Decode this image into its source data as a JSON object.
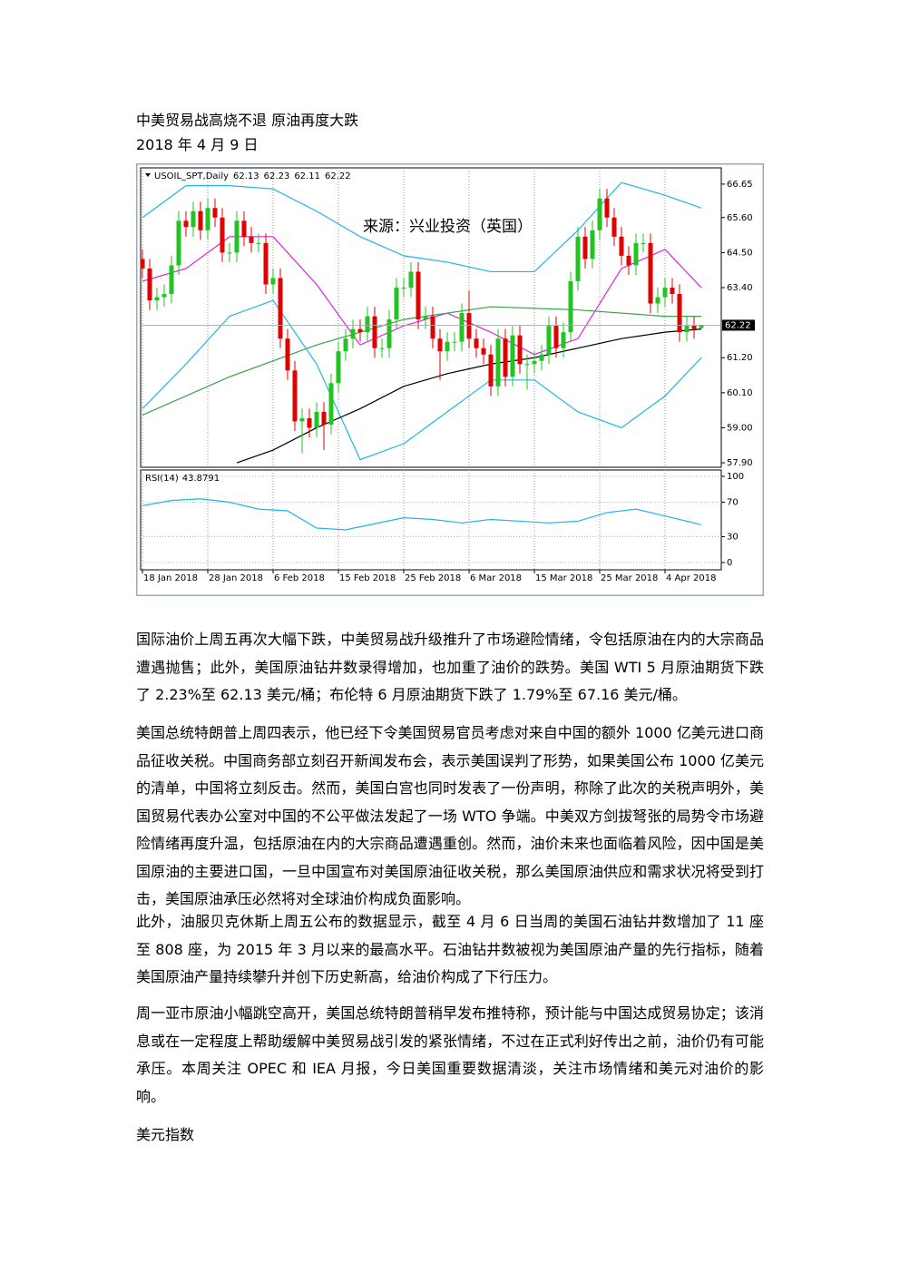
{
  "title": "中美贸易战高烧不退 原油再度大跌",
  "date": "2018 年 4 月 9 日",
  "chart": {
    "type": "candlestick",
    "symbol": "USOIL_SPT,Daily",
    "watermark": "来源：兴业投资（英国）",
    "up_color": "#22c322",
    "down_color": "#e00000",
    "open": [
      64.3,
      64.0,
      63.0,
      63.1,
      63.2,
      64.1,
      65.5,
      65.3,
      65.8,
      65.2,
      65.9,
      65.6,
      64.5,
      64.5,
      65.5,
      65.0,
      64.8,
      64.8,
      63.5,
      63.7,
      61.8,
      60.8,
      59.2,
      59.3,
      59.0,
      59.5,
      59.1,
      60.4,
      61.4,
      61.8,
      62.1,
      62.0,
      62.5,
      61.5,
      61.5,
      62.4,
      63.4,
      63.4,
      63.9,
      62.4,
      62.5,
      61.8,
      61.4,
      61.7,
      61.7,
      62.6,
      61.8,
      61.5,
      61.3,
      60.3,
      61.8,
      60.6,
      61.9,
      61.0,
      61.0,
      61.1,
      61.3,
      62.2,
      61.5,
      62.0,
      63.6,
      65.0,
      64.3,
      65.2,
      66.2,
      65.6,
      65.0,
      64.4,
      64.1,
      64.8,
      64.8,
      62.9,
      63.1,
      63.4,
      63.2,
      62.0,
      62.2,
      62.13
    ],
    "high": [
      64.6,
      64.3,
      63.4,
      63.5,
      64.4,
      65.8,
      65.8,
      66.1,
      66.1,
      66.2,
      66.2,
      65.9,
      64.8,
      65.8,
      65.8,
      65.3,
      65.1,
      65.1,
      64.0,
      64.0,
      62.1,
      61.1,
      59.6,
      59.6,
      59.8,
      59.8,
      60.7,
      61.7,
      62.1,
      62.4,
      62.4,
      62.8,
      62.8,
      61.8,
      62.7,
      63.7,
      63.7,
      64.2,
      64.2,
      62.8,
      62.8,
      62.1,
      62.0,
      62.0,
      62.9,
      63.3,
      62.1,
      61.8,
      61.6,
      62.1,
      62.1,
      62.2,
      62.2,
      61.3,
      61.4,
      61.6,
      62.5,
      62.5,
      62.3,
      63.9,
      65.3,
      65.3,
      65.5,
      66.5,
      66.5,
      65.9,
      65.3,
      64.7,
      65.1,
      65.1,
      65.1,
      63.4,
      63.7,
      63.7,
      63.5,
      62.5,
      62.5,
      62.23
    ],
    "low": [
      63.7,
      62.7,
      62.7,
      62.8,
      62.9,
      63.8,
      65.0,
      65.0,
      64.9,
      64.9,
      65.3,
      64.2,
      64.2,
      64.2,
      64.7,
      64.5,
      64.5,
      63.2,
      63.2,
      61.5,
      60.5,
      58.9,
      58.2,
      58.7,
      58.7,
      58.3,
      58.8,
      60.1,
      61.1,
      61.5,
      61.7,
      61.7,
      61.2,
      61.2,
      61.2,
      62.1,
      63.1,
      63.1,
      62.1,
      62.1,
      61.5,
      60.5,
      61.1,
      61.4,
      61.4,
      61.5,
      61.2,
      61.0,
      60.0,
      60.0,
      60.3,
      60.3,
      60.7,
      60.2,
      60.7,
      60.8,
      61.0,
      61.2,
      61.2,
      61.7,
      63.3,
      64.0,
      64.0,
      64.9,
      65.3,
      64.7,
      64.1,
      63.8,
      63.8,
      64.5,
      62.6,
      62.6,
      62.8,
      62.9,
      61.7,
      61.7,
      61.8,
      62.11
    ],
    "close": [
      64.0,
      63.0,
      63.1,
      63.2,
      64.1,
      65.5,
      65.3,
      65.8,
      65.2,
      65.9,
      65.6,
      64.5,
      64.5,
      65.5,
      65.0,
      64.8,
      64.8,
      63.5,
      63.7,
      61.8,
      60.8,
      59.2,
      59.3,
      59.0,
      59.5,
      59.1,
      60.4,
      61.4,
      61.8,
      62.1,
      62.0,
      62.5,
      61.5,
      61.5,
      62.4,
      63.4,
      63.4,
      63.9,
      62.4,
      62.5,
      61.8,
      61.4,
      61.7,
      61.7,
      62.6,
      61.8,
      61.5,
      61.3,
      60.3,
      61.8,
      60.6,
      61.9,
      61.0,
      61.0,
      61.1,
      61.3,
      62.2,
      61.5,
      62.0,
      63.6,
      65.0,
      64.3,
      65.2,
      66.2,
      65.6,
      65.0,
      64.4,
      64.1,
      64.8,
      64.8,
      62.9,
      63.1,
      63.4,
      63.2,
      62.0,
      62.2,
      62.1,
      62.22
    ],
    "xlim": [
      -0.25,
      79.75
    ],
    "xticks": [
      {
        "value": 0,
        "label": "18 Jan 2018"
      },
      {
        "value": 9,
        "label": "28 Jan 2018"
      },
      {
        "value": 18,
        "label": "6 Feb 2018"
      },
      {
        "value": 27,
        "label": "15 Feb 2018"
      },
      {
        "value": 36,
        "label": "25 Feb 2018"
      },
      {
        "value": 45,
        "label": "6 Mar 2018"
      },
      {
        "value": 54,
        "label": "15 Mar 2018"
      },
      {
        "value": 63,
        "label": "25 Mar 2018"
      },
      {
        "value": 72,
        "label": "4 Apr 2018"
      }
    ],
    "ylim": [
      57.76,
      67.16
    ],
    "yticks": [
      66.65,
      {
        "value": 65.6,
        "label": "65.60"
      },
      {
        "value": 64.5,
        "label": "64.50"
      },
      {
        "value": 63.4,
        "label": "63.40"
      },
      {
        "value": 61.2,
        "label": "61.20"
      },
      {
        "value": 60.1,
        "label": "60.10"
      },
      {
        "value": 59,
        "label": "59.00"
      },
      {
        "value": 57.9,
        "label": "57.90"
      }
    ],
    "lines": [
      {
        "color": "#1fb5e6",
        "x": [
          0,
          6,
          12,
          18,
          24,
          30,
          36,
          42,
          48,
          54,
          60,
          66,
          72,
          77
        ],
        "values": [
          65.6,
          66.6,
          66.6,
          66.5,
          65.8,
          65.0,
          64.4,
          64.2,
          63.9,
          63.9,
          65.2,
          66.7,
          66.3,
          65.9
        ]
      },
      {
        "color": "#e020e0",
        "x": [
          0,
          6,
          12,
          18,
          24,
          30,
          36,
          42,
          48,
          54,
          60,
          66,
          72,
          77
        ],
        "values": [
          63.6,
          64.0,
          65.0,
          65.0,
          63.5,
          61.6,
          62.2,
          62.6,
          62.0,
          61.3,
          61.8,
          64.0,
          64.6,
          63.4
        ]
      },
      {
        "color": "#1fb5e6",
        "x": [
          0,
          6,
          12,
          18,
          24,
          30,
          36,
          42,
          48,
          54,
          60,
          66,
          72,
          77
        ],
        "values": [
          59.6,
          61.0,
          62.5,
          63.0,
          61.0,
          58.0,
          58.5,
          59.5,
          60.5,
          60.5,
          59.5,
          59.0,
          60.0,
          61.2
        ]
      },
      {
        "color": "#3aa34a",
        "x": [
          0,
          12,
          24,
          36,
          48,
          60,
          72,
          77
        ],
        "values": [
          59.4,
          60.6,
          61.6,
          62.4,
          62.8,
          62.7,
          62.5,
          62.5
        ]
      },
      {
        "color": "#000000",
        "x": [
          13,
          18,
          24,
          30,
          36,
          42,
          48,
          54,
          60,
          66,
          72,
          77
        ],
        "values": [
          57.9,
          58.3,
          59.0,
          59.6,
          60.3,
          60.7,
          61.0,
          61.2,
          61.5,
          61.8,
          62.0,
          62.1
        ]
      }
    ],
    "rsi": {
      "name": "RSI(14)",
      "color": "#1fb5e6",
      "x": [
        0,
        4,
        8,
        12,
        16,
        20,
        24,
        28,
        32,
        36,
        40,
        44,
        48,
        52,
        56,
        60,
        64,
        68,
        72,
        76,
        77
      ],
      "values": [
        66,
        72,
        74,
        70,
        62,
        60,
        40,
        38,
        45,
        52,
        50,
        46,
        50,
        48,
        46,
        48,
        58,
        62,
        54,
        46,
        43.8791
      ],
      "ylim": [
        -8.4,
        107.4
      ],
      "yticks": [
        100,
        70,
        30,
        0
      ]
    }
  },
  "paragraphs": [
    "国际油价上周五再次大幅下跌，中美贸易战升级推升了市场避险情绪，令包括原油在内的大宗商品遭遇抛售；此外，美国原油钻井数录得增加，也加重了油价的跌势。美国 WTI 5 月原油期货下跌了 2.23%至 62.13 美元/桶；布伦特 6 月原油期货下跌了 1.79%至 67.16 美元/桶。",
    "美国总统特朗普上周四表示，他已经下令美国贸易官员考虑对来自中国的额外 1000 亿美元进口商品征收关税。中国商务部立刻召开新闻发布会，表示美国误判了形势，如果美国公布 1000 亿美元的清单，中国将立刻反击。然而，美国白宫也同时发表了一份声明，称除了此次的关税声明外，美国贸易代表办公室对中国的不公平做法发起了一场 WTO 争端。中美双方剑拔弩张的局势令市场避险情绪再度升温，包括原油在内的大宗商品遭遇重创。然而，油价未来也面临着风险，因中国是美国原油的主要进口国，一旦中国宣布对美国原油征收关税，那么美国原油供应和需求状况将受到打击，美国原油承压必然将对全球油价构成负面影响。",
    "此外，油服贝克休斯上周五公布的数据显示，截至 4 月 6 日当周的美国石油钻井数增加了 11 座至 808 座，为 2015 年 3 月以来的最高水平。石油钻井数被视为美国原油产量的先行指标，随着美国原油产量持续攀升并创下历史新高，给油价构成了下行压力。",
    "周一亚市原油小幅跳空高开，美国总统特朗普稍早发布推特称，预计能与中国达成贸易协定；该消息或在一定程度上帮助缓解中美贸易战引发的紧张情绪，不过在正式利好传出之前，油价仍有可能承压。本周关注 OPEC 和 IEA 月报，今日美国重要数据清淡，关注市场情绪和美元对油价的影响。"
  ],
  "section_heading": "美元指数"
}
